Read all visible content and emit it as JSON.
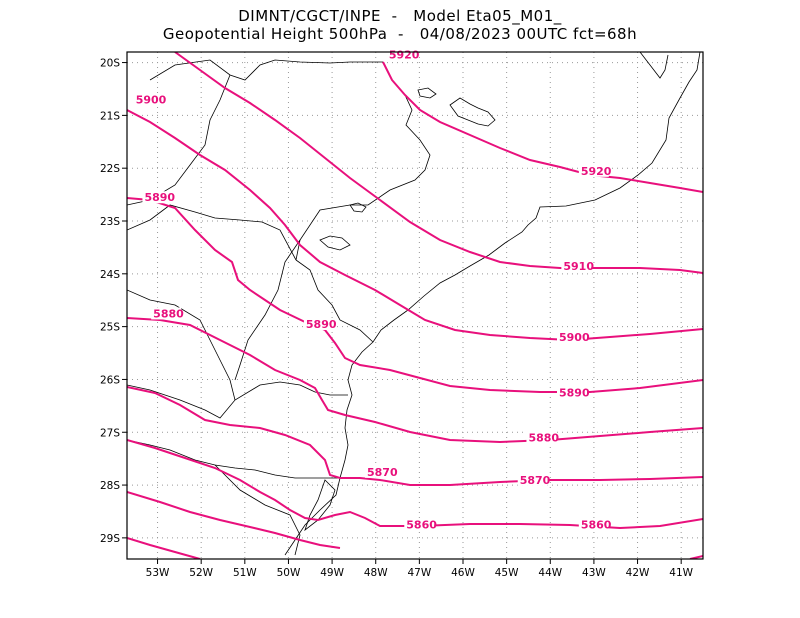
{
  "header": {
    "line1": "DIMNT/CGCT/INPE  -   Model Eta05_M01_",
    "line2": "Geopotential Height 500hPa  -   04/08/2023 00UTC fct=68h"
  },
  "map": {
    "lon_range": [
      -53.7,
      -40.5
    ],
    "lat_range": [
      -29.4,
      -19.8
    ],
    "lon_ticks": [
      "53W",
      "52W",
      "51W",
      "50W",
      "49W",
      "48W",
      "47W",
      "46W",
      "45W",
      "44W",
      "43W",
      "42W",
      "41W"
    ],
    "lat_ticks": [
      "20S",
      "21S",
      "22S",
      "23S",
      "24S",
      "25S",
      "26S",
      "27S",
      "28S",
      "29S"
    ],
    "contour_color": "#e8107c",
    "coast_color": "#000000",
    "grid_color": "#999999",
    "contour_labels": [
      {
        "text": "5920",
        "lon": -47.7,
        "lat": -19.85
      },
      {
        "text": "5920",
        "lon": -43.3,
        "lat": -22.05
      },
      {
        "text": "5900",
        "lon": -53.5,
        "lat": -20.7
      },
      {
        "text": "5890",
        "lon": -53.3,
        "lat": -22.55
      },
      {
        "text": "5910",
        "lon": -43.7,
        "lat": -23.85
      },
      {
        "text": "5880",
        "lon": -53.1,
        "lat": -24.75
      },
      {
        "text": "5890",
        "lon": -49.6,
        "lat": -24.95
      },
      {
        "text": "5900",
        "lon": -43.8,
        "lat": -25.2
      },
      {
        "text": "5890",
        "lon": -43.8,
        "lat": -26.25
      },
      {
        "text": "5880",
        "lon": -44.5,
        "lat": -27.1
      },
      {
        "text": "5870",
        "lon": -48.2,
        "lat": -27.75
      },
      {
        "text": "5870",
        "lon": -44.7,
        "lat": -27.9
      },
      {
        "text": "5860",
        "lon": -47.3,
        "lat": -28.75
      },
      {
        "text": "5860",
        "lon": -43.3,
        "lat": -28.75
      }
    ]
  }
}
